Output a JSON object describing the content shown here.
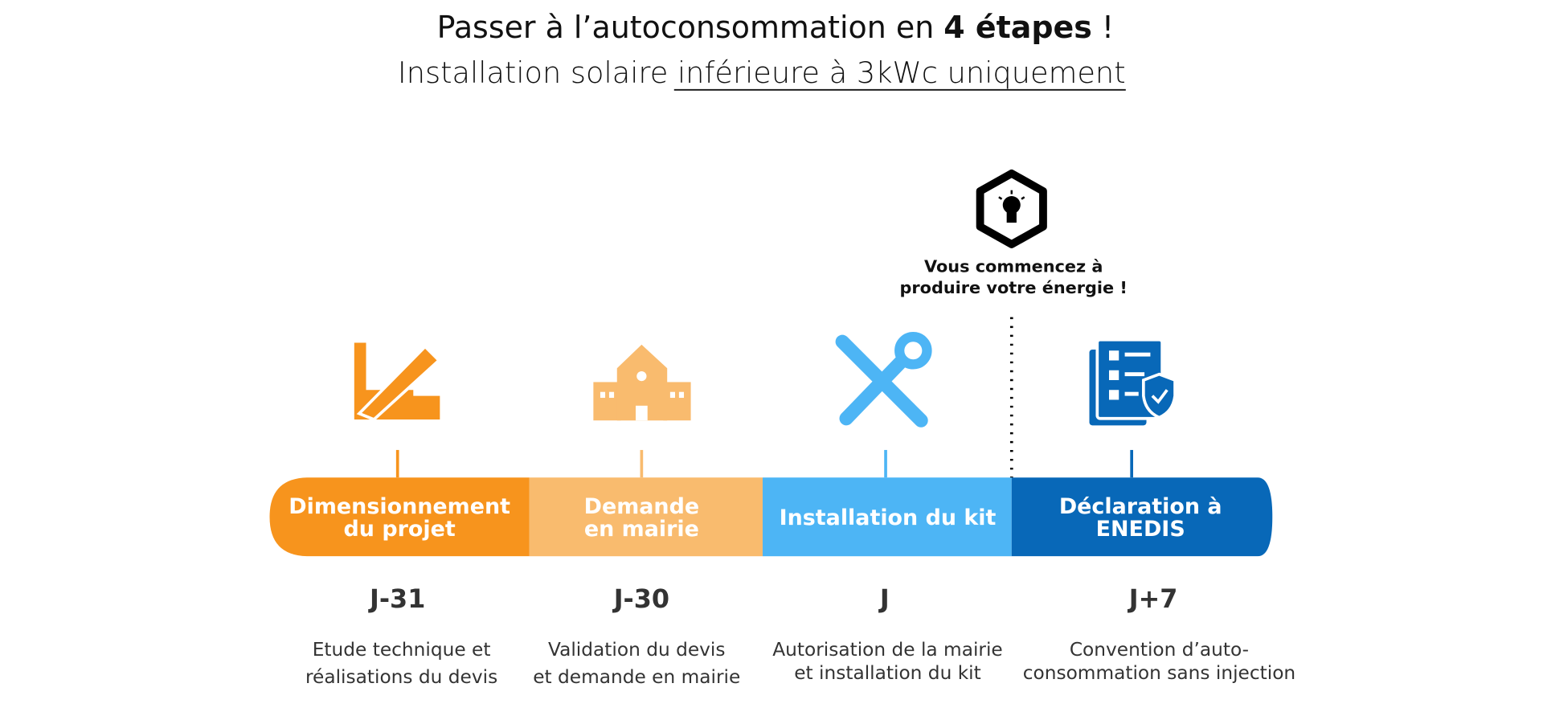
{
  "header": {
    "title": [
      "Passer à l’autoconsommation en ",
      "4 étapes",
      " !"
    ],
    "subtitle": [
      "Installation solaire ",
      "inférieure à 3kWc uniquement"
    ]
  },
  "callout": {
    "lines": [
      "Vous commencez à",
      "produire votre énergie !"
    ]
  },
  "steps": [
    {
      "label": [
        "Dimensionnement",
        "du projet"
      ],
      "day": "J-31",
      "description": [
        "Etude technique et",
        "réalisations du devis"
      ]
    },
    {
      "label": [
        "Demande",
        "en mairie"
      ],
      "day": "J-30",
      "description": [
        "Validation du devis",
        "et demande en mairie"
      ]
    },
    {
      "label": [
        "Installation du kit"
      ],
      "day": "J",
      "description": [
        "Autorisation de la mairie",
        "et installation du kit"
      ]
    },
    {
      "label": [
        "Déclaration à",
        "ENEDIS"
      ],
      "day": "J+7",
      "description": [
        "Convention d’auto-",
        "consommation sans injection"
      ]
    }
  ]
}
